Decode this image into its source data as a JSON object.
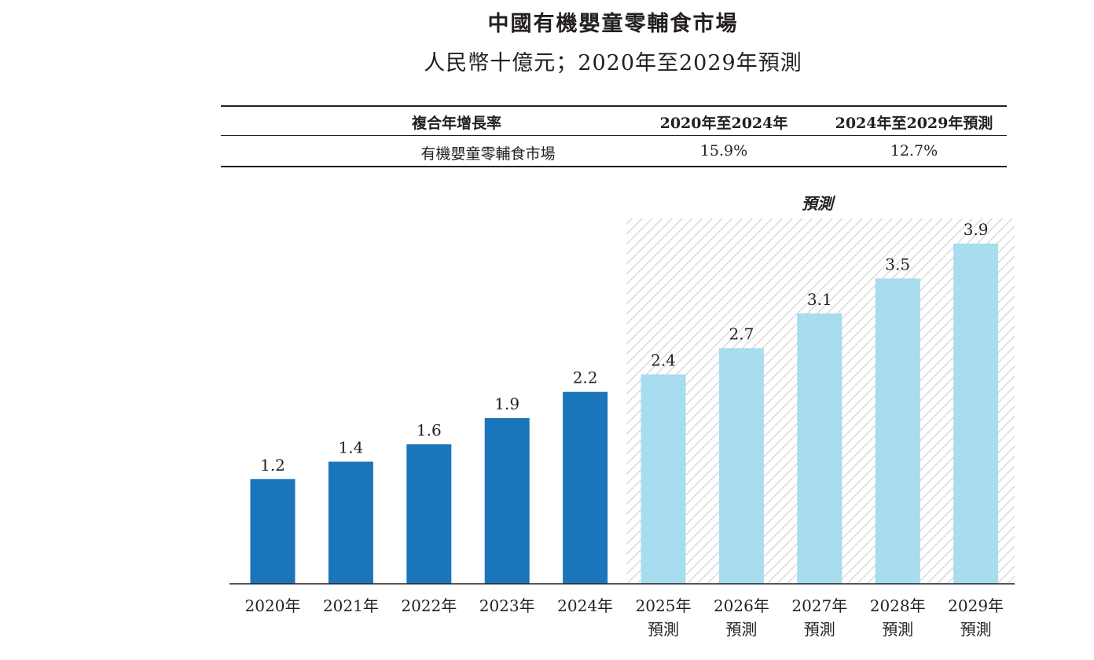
{
  "chart_data": {
    "type": "bar",
    "title": "中國有機嬰童零輔食市場",
    "subtitle": "人民幣十億元；2020年至2029年預測",
    "cagr_table": {
      "header": [
        "複合年增長率",
        "2020年至2024年",
        "2024年至2029年預測"
      ],
      "rows": [
        {
          "label": "有機嬰童零輔食市場",
          "values": [
            "15.9%",
            "12.7%"
          ]
        }
      ]
    },
    "forecast_label": "預測",
    "categories": [
      "2020年",
      "2021年",
      "2022年",
      "2023年",
      "2024年",
      "2025年",
      "2026年",
      "2027年",
      "2028年",
      "2029年"
    ],
    "category_sublabels": [
      "",
      "",
      "",
      "",
      "",
      "預測",
      "預測",
      "預測",
      "預測",
      "預測"
    ],
    "values": [
      1.2,
      1.4,
      1.6,
      1.9,
      2.2,
      2.4,
      2.7,
      3.1,
      3.5,
      3.9
    ],
    "value_labels": [
      "1.2",
      "1.4",
      "1.6",
      "1.9",
      "2.2",
      "2.4",
      "2.7",
      "3.1",
      "3.5",
      "3.9"
    ],
    "forecast_start_index": 5,
    "ylim": [
      0,
      4.0
    ],
    "grid": false,
    "colors": {
      "actual": "#1b75bb",
      "forecast": "#a8dcef",
      "hatch": "#bdbdbd",
      "axis": "#231f20"
    }
  }
}
